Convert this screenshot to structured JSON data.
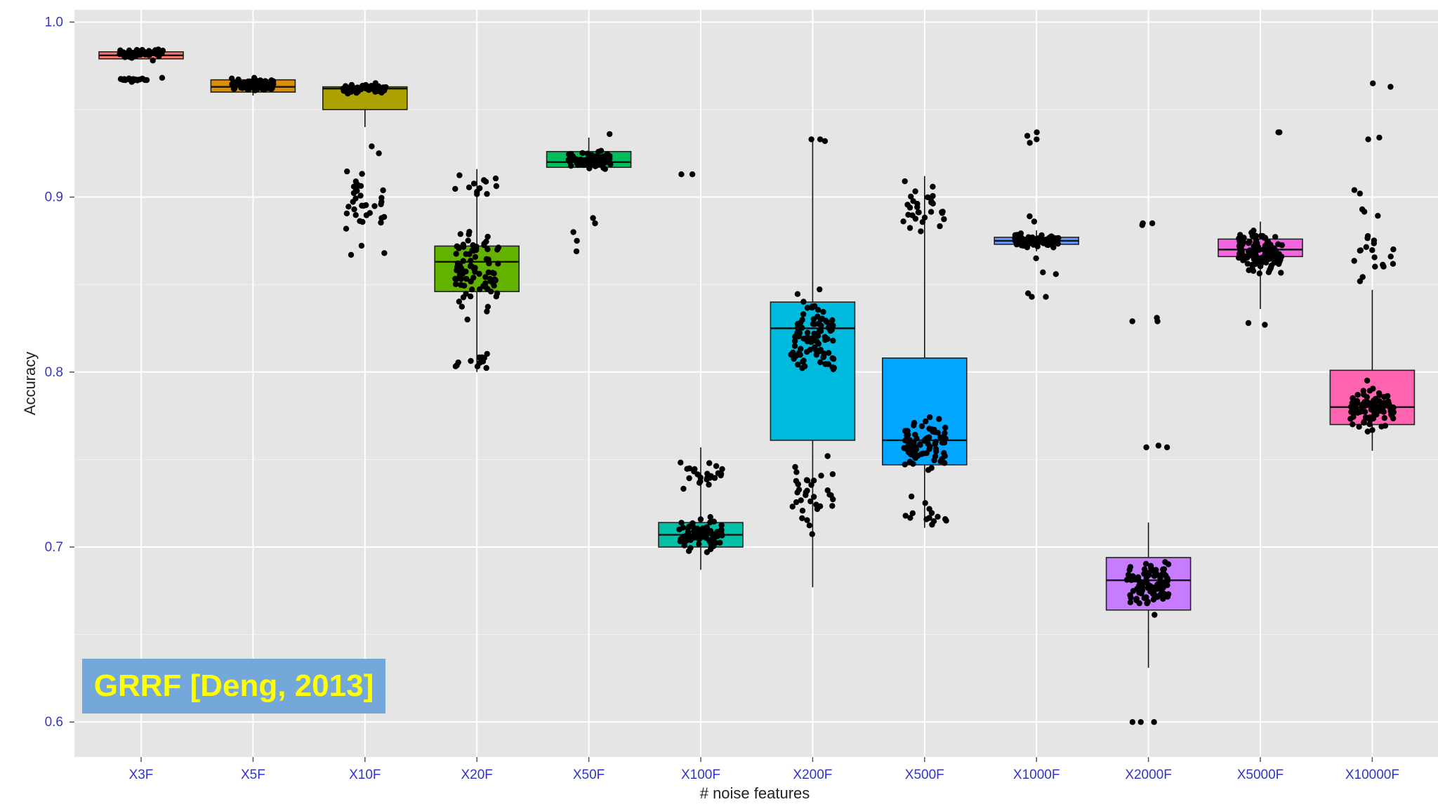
{
  "chart_data": {
    "type": "boxplot",
    "title": "",
    "xlabel": "# noise features",
    "ylabel": "Accuracy",
    "ylim": [
      0.58,
      1.007
    ],
    "yticks": [
      0.6,
      0.7,
      0.8,
      0.9,
      1.0
    ],
    "ytick_labels": [
      "0.6",
      "0.7",
      "0.8",
      "0.9",
      "1.0"
    ],
    "grid": true,
    "tick_label_color": "#3333cc",
    "background_color": "#e5e5e5",
    "annotation": {
      "text": "GRRF [Deng, 2013]",
      "background": "#74a8da",
      "color": "#ffff00",
      "position": "bottom-left"
    },
    "groups": [
      {
        "category": "X3F",
        "color": "#f8766d",
        "q1": 0.979,
        "median": 0.981,
        "q3": 0.983,
        "whisker_low": 0.979,
        "whisker_high": 0.983,
        "clusters": [
          {
            "center": 0.982,
            "spread": 0.003,
            "n": 55
          },
          {
            "center": 0.967,
            "spread": 0.001,
            "n": 22
          }
        ],
        "outliers": []
      },
      {
        "category": "X5F",
        "color": "#db8e00",
        "q1": 0.96,
        "median": 0.963,
        "q3": 0.967,
        "whisker_low": 0.958,
        "whisker_high": 0.968,
        "clusters": [
          {
            "center": 0.964,
            "spread": 0.0035,
            "n": 75
          }
        ],
        "outliers": []
      },
      {
        "category": "X10F",
        "color": "#aea200",
        "q1": 0.95,
        "median": 0.962,
        "q3": 0.963,
        "whisker_low": 0.94,
        "whisker_high": 0.964,
        "clusters": [
          {
            "center": 0.962,
            "spread": 0.0025,
            "n": 55
          },
          {
            "center": 0.897,
            "spread": 0.017,
            "n": 34
          }
        ],
        "outliers": [
          0.929,
          0.925,
          0.868,
          0.867
        ]
      },
      {
        "category": "X20F",
        "color": "#64b200",
        "q1": 0.846,
        "median": 0.863,
        "q3": 0.872,
        "whisker_low": 0.8,
        "whisker_high": 0.916,
        "clusters": [
          {
            "center": 0.858,
            "spread": 0.022,
            "n": 90
          },
          {
            "center": 0.906,
            "spread": 0.007,
            "n": 12
          },
          {
            "center": 0.807,
            "spread": 0.005,
            "n": 12
          }
        ],
        "outliers": []
      },
      {
        "category": "X50F",
        "color": "#00bd5c",
        "q1": 0.917,
        "median": 0.92,
        "q3": 0.926,
        "whisker_low": 0.916,
        "whisker_high": 0.934,
        "clusters": [
          {
            "center": 0.921,
            "spread": 0.0045,
            "n": 70
          }
        ],
        "outliers": [
          0.936,
          0.888,
          0.885,
          0.88,
          0.875,
          0.869
        ]
      },
      {
        "category": "X100F",
        "color": "#00c1a7",
        "q1": 0.7,
        "median": 0.707,
        "q3": 0.714,
        "whisker_low": 0.687,
        "whisker_high": 0.757,
        "clusters": [
          {
            "center": 0.706,
            "spread": 0.009,
            "n": 80
          },
          {
            "center": 0.74,
            "spread": 0.009,
            "n": 24
          }
        ],
        "outliers": [
          0.913,
          0.913
        ]
      },
      {
        "category": "X200F",
        "color": "#00bade",
        "q1": 0.761,
        "median": 0.825,
        "q3": 0.84,
        "whisker_low": 0.677,
        "whisker_high": 0.933,
        "clusters": [
          {
            "center": 0.82,
            "spread": 0.022,
            "n": 95
          },
          {
            "center": 0.73,
            "spread": 0.02,
            "n": 35
          }
        ],
        "outliers": [
          0.933,
          0.932,
          0.933
        ]
      },
      {
        "category": "X500F",
        "color": "#00a6ff",
        "q1": 0.747,
        "median": 0.761,
        "q3": 0.808,
        "whisker_low": 0.711,
        "whisker_high": 0.912,
        "clusters": [
          {
            "center": 0.758,
            "spread": 0.014,
            "n": 75
          },
          {
            "center": 0.895,
            "spread": 0.014,
            "n": 30
          },
          {
            "center": 0.72,
            "spread": 0.006,
            "n": 14
          }
        ],
        "outliers": []
      },
      {
        "category": "X1000F",
        "color": "#619cff",
        "q1": 0.873,
        "median": 0.875,
        "q3": 0.877,
        "whisker_low": 0.869,
        "whisker_high": 0.881,
        "clusters": [
          {
            "center": 0.875,
            "spread": 0.003,
            "n": 75
          }
        ],
        "outliers": [
          0.937,
          0.935,
          0.933,
          0.931,
          0.889,
          0.886,
          0.865,
          0.857,
          0.856,
          0.845,
          0.843,
          0.843
        ]
      },
      {
        "category": "X2000F",
        "color": "#c77cff",
        "q1": 0.664,
        "median": 0.681,
        "q3": 0.694,
        "whisker_low": 0.631,
        "whisker_high": 0.714,
        "clusters": [
          {
            "center": 0.68,
            "spread": 0.015,
            "n": 85
          }
        ],
        "outliers": [
          0.885,
          0.884,
          0.885,
          0.831,
          0.829,
          0.829,
          0.758,
          0.757,
          0.757,
          0.6,
          0.6,
          0.6
        ]
      },
      {
        "category": "X5000F",
        "color": "#f564e3",
        "q1": 0.866,
        "median": 0.87,
        "q3": 0.876,
        "whisker_low": 0.836,
        "whisker_high": 0.886,
        "clusters": [
          {
            "center": 0.868,
            "spread": 0.011,
            "n": 110
          }
        ],
        "outliers": [
          0.937,
          0.937,
          0.827,
          0.828
        ]
      },
      {
        "category": "X10000F",
        "color": "#ff64b0",
        "q1": 0.77,
        "median": 0.78,
        "q3": 0.801,
        "whisker_low": 0.755,
        "whisker_high": 0.847,
        "clusters": [
          {
            "center": 0.78,
            "spread": 0.011,
            "n": 95
          },
          {
            "center": 0.865,
            "spread": 0.02,
            "n": 20
          }
        ],
        "outliers": [
          0.965,
          0.963,
          0.934,
          0.933,
          0.904,
          0.902,
          0.893
        ]
      }
    ]
  }
}
